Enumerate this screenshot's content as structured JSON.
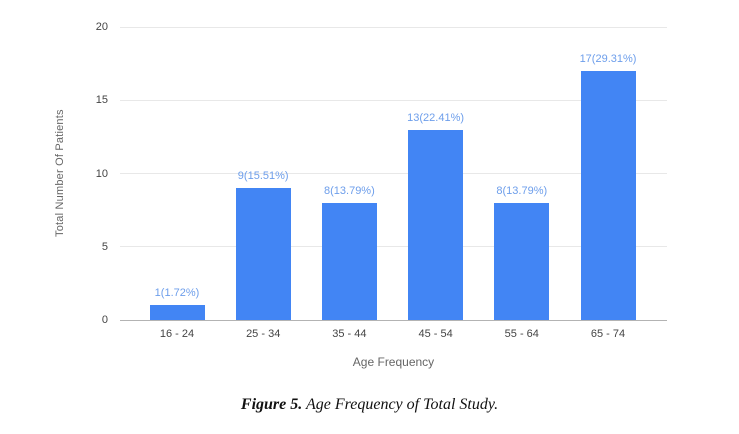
{
  "figure": {
    "caption_bold": "Figure 5.",
    "caption_rest": " Age Frequency of Total Study."
  },
  "chart_data": {
    "type": "bar",
    "title": "",
    "categories": [
      "16 - 24",
      "25 - 34",
      "35 - 44",
      "45 - 54",
      "55 - 64",
      "65 - 74"
    ],
    "values": [
      1,
      9,
      8,
      13,
      8,
      17
    ],
    "annotations": [
      "1(1.72%)",
      "9(15.51%)",
      "8(13.79%)",
      "13(22.41%)",
      "8(13.79%)",
      "17(29.31%)"
    ],
    "xlabel": "Age Frequency",
    "ylabel": "Total Number Of Patients",
    "yticks": [
      0,
      5,
      10,
      15,
      20
    ],
    "ylim": [
      0,
      20
    ],
    "grid": true,
    "legend": "none",
    "colors": {
      "bar": "#4285f4",
      "annotation_text": "#6d9eeb",
      "gridline": "#e8e8e8",
      "baseline": "#b3b3b3",
      "tick_text": "#444444",
      "axis_title_text": "#666666"
    }
  }
}
